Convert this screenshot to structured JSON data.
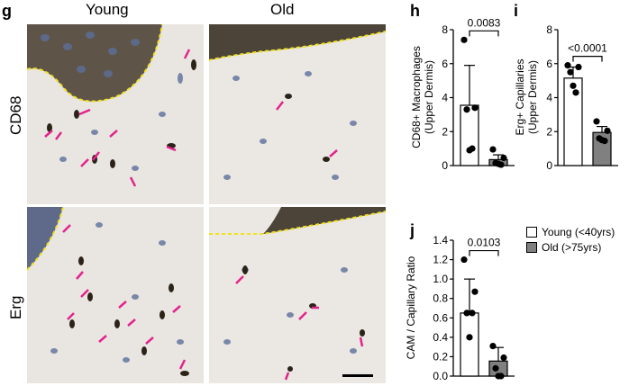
{
  "figure": {
    "panel_g": {
      "letter": "g",
      "columns": [
        "Young",
        "Old"
      ],
      "rows": [
        "CD68",
        "Erg"
      ]
    }
  },
  "legend": {
    "young": "Young (<40yrs)",
    "old": "Old (>75yrs)",
    "young_color": "#ffffff",
    "old_color": "#808080"
  },
  "chart_data": [
    {
      "panel": "h",
      "type": "bar",
      "categories": [
        "Young (<40yrs)",
        "Old (>75yrs)"
      ],
      "values": [
        3.55,
        0.35
      ],
      "error": [
        2.35,
        0.28
      ],
      "points": [
        [
          7.4,
          3.4,
          3.3,
          1.0,
          0.9
        ],
        [
          0.95,
          0.45,
          0.15,
          0.05,
          0.1
        ]
      ],
      "ylabel": "CD68+ Macrophages\n(Upper Dermis)",
      "ylim": [
        0,
        8
      ],
      "yticks": [
        0,
        2,
        4,
        6,
        8
      ],
      "annotation": "0.0083",
      "colors": [
        "#ffffff",
        "#808080"
      ]
    },
    {
      "panel": "i",
      "type": "bar",
      "categories": [
        "Young (<40yrs)",
        "Old (>75yrs)"
      ],
      "values": [
        5.15,
        1.95
      ],
      "error": [
        0.65,
        0.35
      ],
      "points": [
        [
          5.9,
          5.8,
          5.5,
          4.3,
          4.7
        ],
        [
          2.6,
          2.05,
          1.6,
          1.45,
          1.5
        ]
      ],
      "ylabel": "Erg+ Capillaries\n(Upper Dermis)",
      "ylim": [
        0,
        8
      ],
      "yticks": [
        0,
        2,
        4,
        6,
        8
      ],
      "annotation": "<0.0001",
      "colors": [
        "#ffffff",
        "#808080"
      ]
    },
    {
      "panel": "j",
      "type": "bar",
      "categories": [
        "Young (<40yrs)",
        "Old (>75yrs)"
      ],
      "values": [
        0.65,
        0.155
      ],
      "error": [
        0.35,
        0.14
      ],
      "points": [
        [
          1.2,
          0.87,
          0.65,
          0.65,
          0.4
        ],
        [
          0.31,
          0.19,
          0.08,
          0.0,
          0.0
        ]
      ],
      "ylabel": "CAM / Capillary Ratio",
      "ylim": [
        0,
        1.4
      ],
      "yticks": [
        0.0,
        0.2,
        0.4,
        0.6,
        0.8,
        1.0,
        1.2,
        1.4
      ],
      "annotation": "0.0103",
      "colors": [
        "#ffffff",
        "#808080"
      ]
    }
  ]
}
